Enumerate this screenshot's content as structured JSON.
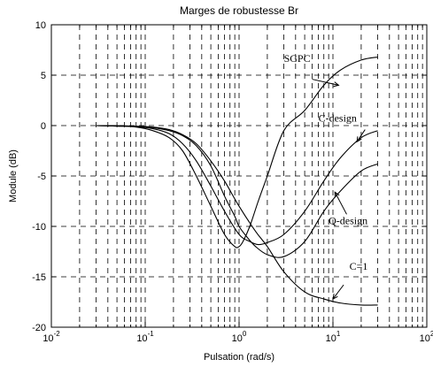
{
  "chart_data": {
    "type": "line",
    "title": "Marges de robustesse Br",
    "xlabel": "Pulsation (rad/s)",
    "ylabel": "Module (dB)",
    "xscale": "log",
    "xlim": [
      0.01,
      100
    ],
    "ylim": [
      -20,
      10
    ],
    "x_ticks": [
      {
        "base": "10",
        "exp": "-2"
      },
      {
        "base": "10",
        "exp": "-1"
      },
      {
        "base": "10",
        "exp": "0"
      },
      {
        "base": "10",
        "exp": "1"
      },
      {
        "base": "10",
        "exp": "2"
      }
    ],
    "y_ticks": [
      "10",
      "5",
      "0",
      "-5",
      "-10",
      "-15",
      "-20"
    ],
    "grid": true,
    "series": [
      {
        "x": [
          0.03,
          0.05,
          0.08,
          0.12,
          0.18,
          0.25,
          0.35,
          0.5,
          0.7,
          0.9,
          1.0,
          1.2,
          1.5,
          2,
          3,
          5,
          8,
          12,
          20,
          30
        ],
        "y": [
          0,
          -0.02,
          -0.08,
          -0.2,
          -0.5,
          -1.0,
          -2.0,
          -4.0,
          -7.0,
          -9.0,
          -10.0,
          -11.0,
          -12.0,
          -12.8,
          -13.0,
          -11.5,
          -8.5,
          -6.5,
          -4.5,
          -3.8
        ]
      },
      {
        "x": [
          0.03,
          0.05,
          0.08,
          0.12,
          0.18,
          0.25,
          0.35,
          0.5,
          0.7,
          1.0,
          1.3,
          1.6,
          2,
          3,
          5,
          8,
          12,
          20,
          30
        ],
        "y": [
          0,
          -0.05,
          -0.1,
          -0.3,
          -0.8,
          -1.8,
          -3.5,
          -6.0,
          -8.5,
          -10.8,
          -11.5,
          -11.8,
          -11.6,
          -10.8,
          -8.5,
          -5.5,
          -3.2,
          -1.2,
          -0.5
        ]
      },
      {
        "x": [
          0.03,
          0.05,
          0.08,
          0.12,
          0.18,
          0.25,
          0.35,
          0.5,
          0.7,
          0.9,
          1.0,
          1.1,
          1.3,
          1.6,
          2,
          3,
          5,
          8,
          12,
          20,
          30
        ],
        "y": [
          0,
          -0.05,
          -0.15,
          -0.5,
          -1.2,
          -2.5,
          -5.0,
          -8.0,
          -10.8,
          -12.0,
          -12.0,
          -11.5,
          -10.0,
          -7.5,
          -5.0,
          -0.5,
          1.5,
          4.0,
          5.5,
          6.5,
          6.8
        ]
      },
      {
        "x": [
          0.03,
          0.05,
          0.08,
          0.12,
          0.18,
          0.25,
          0.35,
          0.5,
          0.7,
          1.0,
          1.5,
          2,
          3,
          5,
          8,
          12,
          20,
          30
        ],
        "y": [
          0,
          -0.02,
          -0.06,
          -0.15,
          -0.4,
          -0.9,
          -1.8,
          -3.5,
          -5.5,
          -8.0,
          -10.5,
          -12.0,
          -14.5,
          -16.5,
          -17.2,
          -17.6,
          -17.8,
          -17.8
        ]
      }
    ],
    "annotations": [
      {
        "text": "SGPC"
      },
      {
        "text": "C-design"
      },
      {
        "text": "Q-design"
      },
      {
        "text": "C=1"
      }
    ]
  }
}
